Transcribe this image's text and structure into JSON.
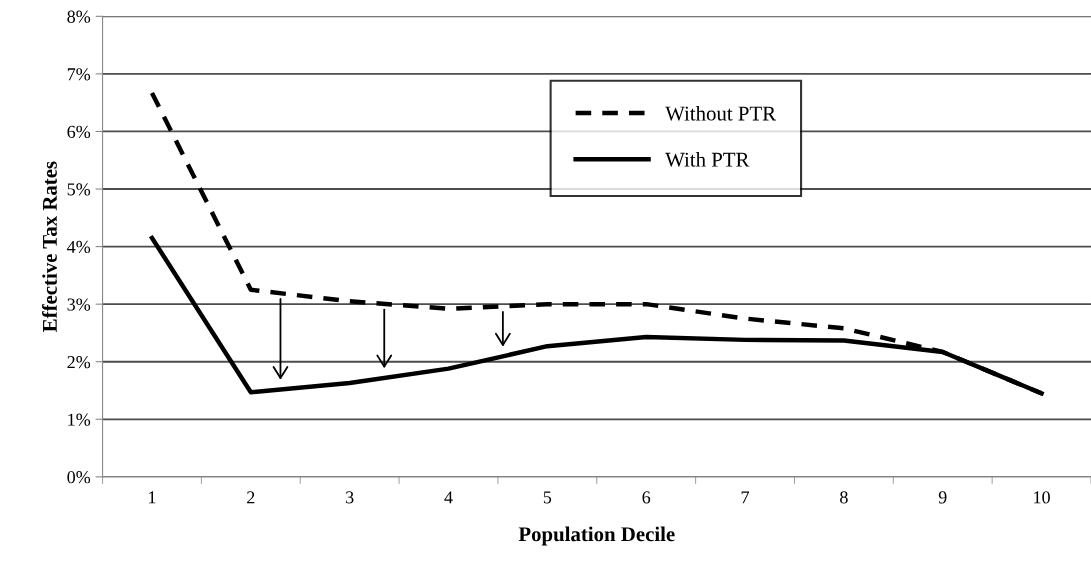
{
  "chart_data": {
    "type": "line",
    "xlabel": "Population Decile",
    "ylabel": "Effective Tax Rates",
    "categories": [
      "1",
      "2",
      "3",
      "4",
      "5",
      "6",
      "7",
      "8",
      "9",
      "10"
    ],
    "series": [
      {
        "name": "Without PTR",
        "color": "#000000",
        "line_style": "dashed",
        "values": [
          6.67,
          3.25,
          3.05,
          2.92,
          3.0,
          3.0,
          2.75,
          2.58,
          2.17,
          1.45
        ]
      },
      {
        "name": "With PTR",
        "color": "#000000",
        "line_style": "solid",
        "values": [
          4.15,
          1.47,
          1.63,
          1.88,
          2.27,
          2.43,
          2.38,
          2.37,
          2.17,
          1.45
        ]
      }
    ],
    "ylim": [
      0,
      8
    ],
    "yticks": [
      {
        "value": 0,
        "label": "0%"
      },
      {
        "value": 1,
        "label": "1%"
      },
      {
        "value": 2,
        "label": "2%"
      },
      {
        "value": 3,
        "label": "3%"
      },
      {
        "value": 4,
        "label": "4%"
      },
      {
        "value": 5,
        "label": "5%"
      },
      {
        "value": 6,
        "label": "6%"
      },
      {
        "value": 7,
        "label": "7%"
      },
      {
        "value": 8,
        "label": "8%"
      }
    ],
    "grid": "y",
    "legend": "top",
    "marker": "none"
  }
}
